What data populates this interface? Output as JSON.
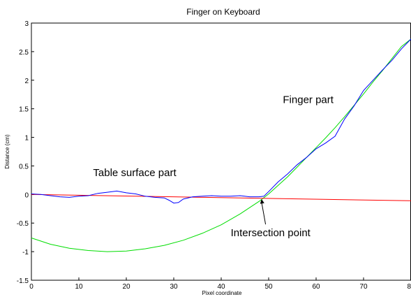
{
  "chart_data": {
    "type": "line",
    "title": "Finger on Keyboard",
    "xlabel": "Pixel coordinate",
    "ylabel": "Distance (cm)",
    "xlim": [
      0,
      80
    ],
    "ylim": [
      -1.5,
      3
    ],
    "xticks": [
      0,
      10,
      20,
      30,
      40,
      50,
      60,
      70,
      80
    ],
    "yticks": [
      -1.5,
      -1,
      -0.5,
      0,
      0.5,
      1,
      1.5,
      2,
      2.5,
      3
    ],
    "grid": false,
    "series": [
      {
        "color": "#0000ff",
        "x": [
          0,
          2,
          4,
          6,
          8,
          10,
          12,
          14,
          16,
          18,
          20,
          22,
          24,
          26,
          28,
          29,
          30,
          31,
          32,
          34,
          36,
          38,
          40,
          42,
          44,
          46,
          48,
          49,
          50,
          52,
          54,
          56,
          58,
          60,
          62,
          64,
          66,
          68,
          70,
          72,
          74,
          76,
          78,
          80
        ],
        "y": [
          0.01,
          0.0,
          -0.02,
          -0.04,
          -0.05,
          -0.03,
          -0.02,
          0.02,
          0.04,
          0.06,
          0.03,
          0.01,
          -0.03,
          -0.05,
          -0.06,
          -0.1,
          -0.15,
          -0.14,
          -0.08,
          -0.04,
          -0.03,
          -0.02,
          -0.03,
          -0.03,
          -0.02,
          -0.04,
          -0.04,
          -0.03,
          0.05,
          0.22,
          0.36,
          0.52,
          0.65,
          0.8,
          0.9,
          1.02,
          1.32,
          1.55,
          1.82,
          2.0,
          2.18,
          2.35,
          2.55,
          2.72
        ]
      },
      {
        "color": "#00dd00",
        "x": [
          0,
          4,
          8,
          12,
          16,
          20,
          24,
          28,
          32,
          36,
          40,
          44,
          48,
          50,
          52,
          54,
          56,
          58,
          60,
          62,
          64,
          66,
          68,
          70,
          72,
          74,
          76,
          78,
          80
        ],
        "y": [
          -0.76,
          -0.87,
          -0.94,
          -0.98,
          -1.0,
          -0.99,
          -0.95,
          -0.89,
          -0.8,
          -0.68,
          -0.53,
          -0.34,
          -0.12,
          0.01,
          0.16,
          0.31,
          0.48,
          0.65,
          0.82,
          0.99,
          1.17,
          1.36,
          1.56,
          1.76,
          1.97,
          2.17,
          2.38,
          2.59,
          2.72
        ]
      },
      {
        "color": "#ff0000",
        "x": [
          0,
          80
        ],
        "y": [
          0.0,
          -0.11
        ]
      }
    ],
    "annotations": [
      {
        "text": "Finger part",
        "x": 53,
        "y": 1.6
      },
      {
        "text": "Table surface part",
        "x": 13,
        "y": 0.32
      },
      {
        "text": "Intersection point",
        "x": 42,
        "y": -0.73,
        "arrow_to": [
          48.5,
          -0.08
        ]
      }
    ]
  }
}
